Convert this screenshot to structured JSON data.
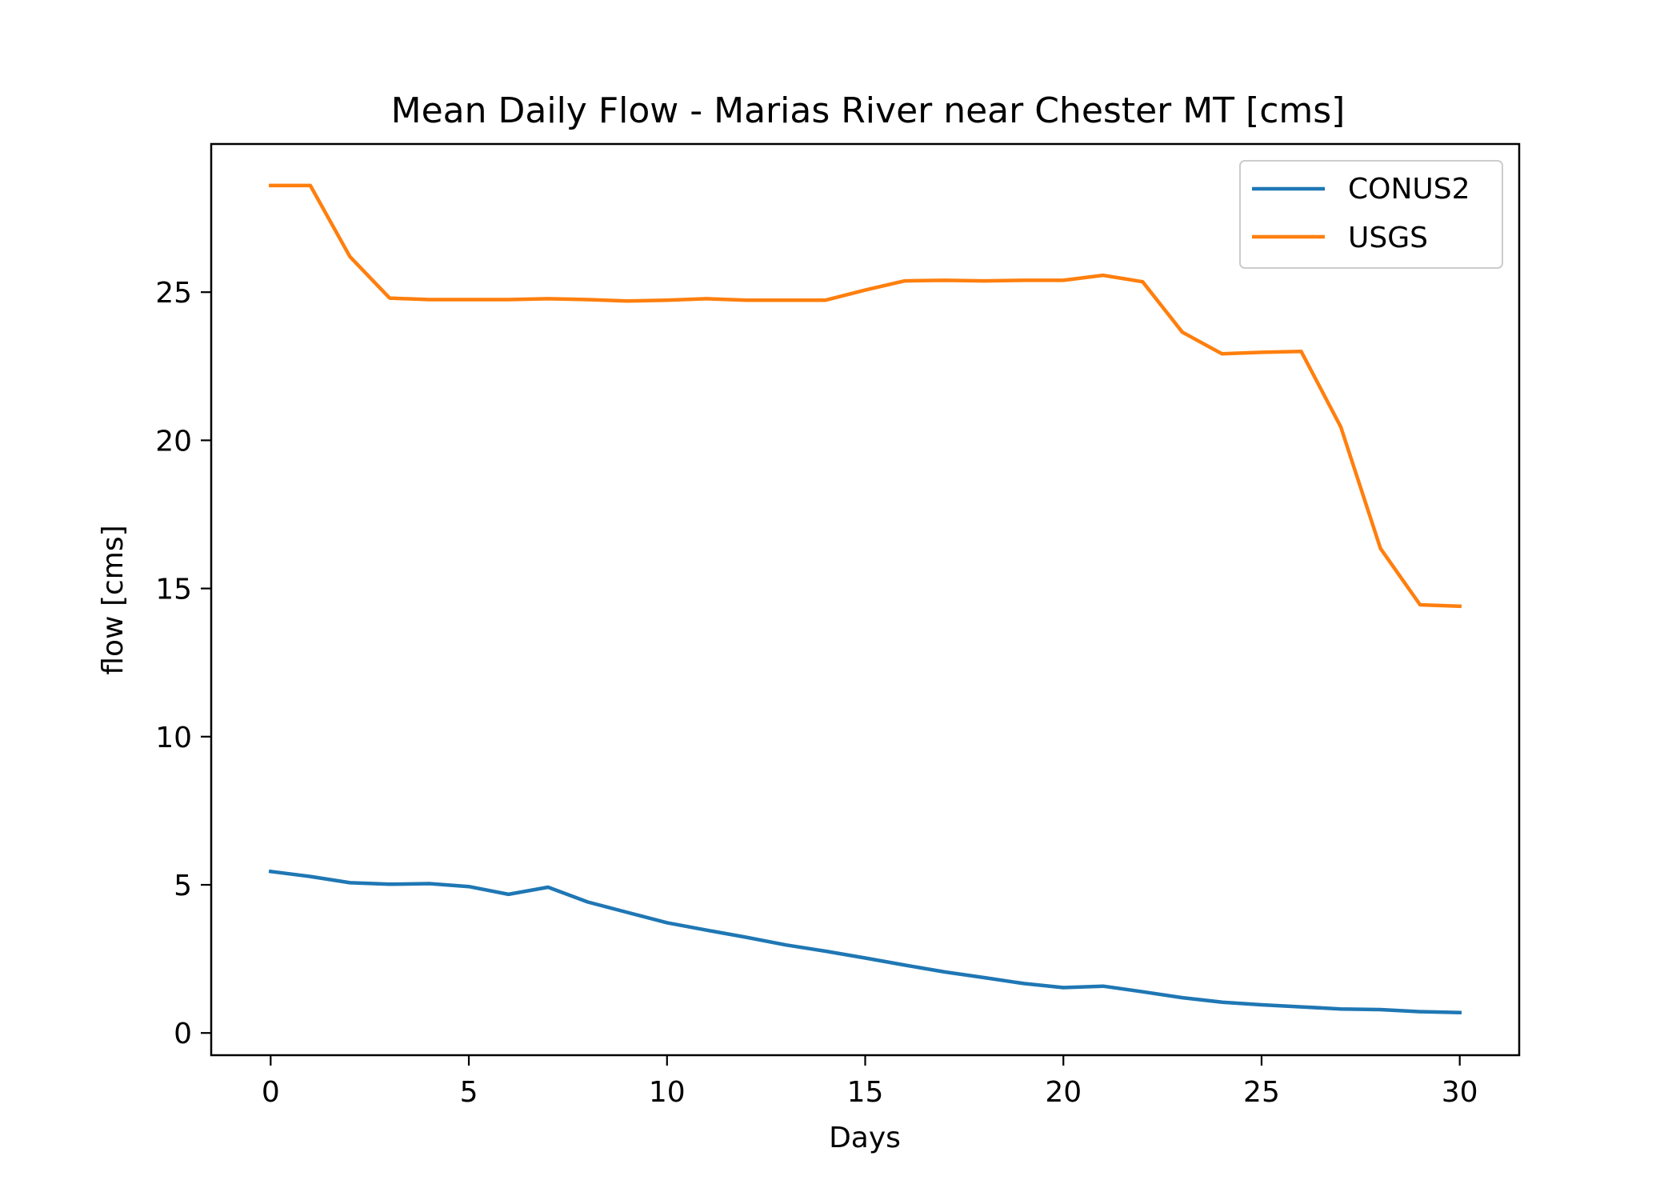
{
  "chart_data": {
    "type": "line",
    "title": "Mean Daily Flow - Marias River near Chester MT [cms]",
    "xlabel": "Days",
    "ylabel": "flow [cms]",
    "xlim": [
      -1.5,
      31.5
    ],
    "ylim": [
      -0.75,
      30.0
    ],
    "x_ticks": [
      0,
      5,
      10,
      15,
      20,
      25,
      30
    ],
    "x_tick_labels": [
      "0",
      "5",
      "10",
      "15",
      "20",
      "25",
      "30"
    ],
    "y_ticks": [
      0,
      5,
      10,
      15,
      20,
      25
    ],
    "y_tick_labels": [
      "0",
      "5",
      "10",
      "15",
      "20",
      "25"
    ],
    "grid": false,
    "legend_position": "top-right",
    "x": [
      0,
      1,
      2,
      3,
      4,
      5,
      6,
      7,
      8,
      9,
      10,
      11,
      12,
      13,
      14,
      15,
      16,
      17,
      18,
      19,
      20,
      21,
      22,
      23,
      24,
      25,
      26,
      27,
      28,
      29,
      30
    ],
    "series": [
      {
        "name": "CONUS2",
        "color": "#1f77b4",
        "values": [
          5.45,
          5.28,
          5.07,
          5.02,
          5.04,
          4.94,
          4.68,
          4.92,
          4.42,
          4.07,
          3.72,
          3.47,
          3.23,
          2.97,
          2.76,
          2.53,
          2.29,
          2.06,
          1.87,
          1.67,
          1.53,
          1.58,
          1.39,
          1.19,
          1.04,
          0.95,
          0.88,
          0.81,
          0.79,
          0.72,
          0.69
        ]
      },
      {
        "name": "USGS",
        "color": "#ff7f0e",
        "values": [
          28.6,
          28.6,
          26.2,
          24.8,
          24.75,
          24.75,
          24.75,
          24.78,
          24.75,
          24.7,
          24.73,
          24.78,
          24.73,
          24.73,
          24.73,
          25.07,
          25.38,
          25.4,
          25.38,
          25.4,
          25.4,
          25.57,
          25.35,
          23.65,
          22.92,
          22.97,
          23.0,
          20.45,
          16.35,
          14.45,
          14.4
        ]
      }
    ]
  }
}
